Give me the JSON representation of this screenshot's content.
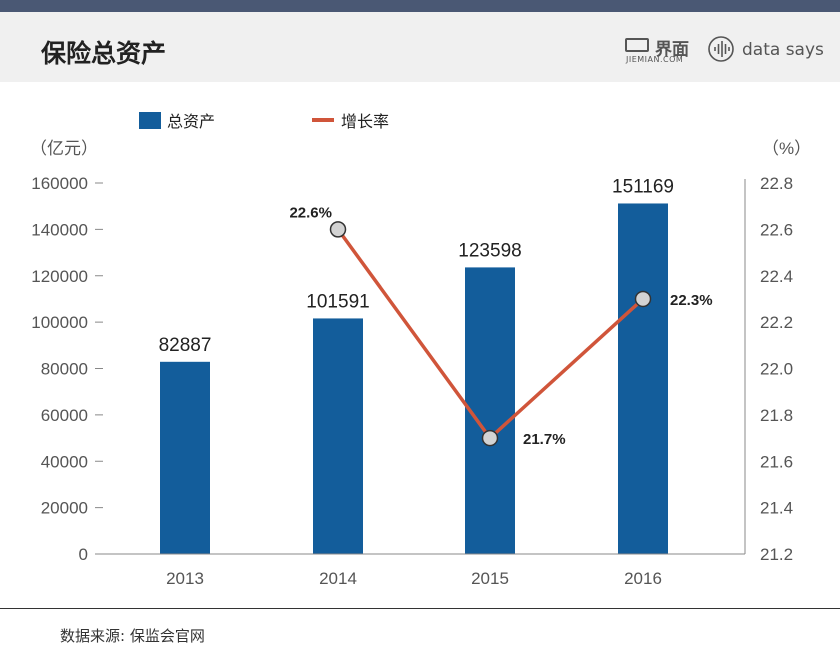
{
  "page": {
    "title": "保险总资产",
    "source": "数据来源: 保监会官网",
    "brand_jiemian": "界面",
    "brand_jiemian_sub": "JIEMIAN.COM",
    "brand_datasays": "data says"
  },
  "colors": {
    "topbar": "#4a5874",
    "header_bg": "#f0f0f0",
    "bar": "#135d9b",
    "line": "#d0553a",
    "marker_fill": "#d3d3d3"
  },
  "chart_data": {
    "type": "bar",
    "categories": [
      "2013",
      "2014",
      "2015",
      "2016"
    ],
    "series": [
      {
        "name": "总资产",
        "type": "bar",
        "axis": "left",
        "values": [
          82887,
          101591,
          123598,
          151169
        ],
        "labels": [
          "82887",
          "101591",
          "123598",
          "151169"
        ]
      },
      {
        "name": "增长率",
        "type": "line",
        "axis": "right",
        "values": [
          null,
          22.6,
          21.7,
          22.3
        ],
        "labels": [
          "",
          "22.6%",
          "21.7%",
          "22.3%"
        ]
      }
    ],
    "y_left": {
      "unit": "（亿元）",
      "min": 0,
      "max": 160000,
      "ticks": [
        "0",
        "20000",
        "40000",
        "60000",
        "80000",
        "100000",
        "120000",
        "140000",
        "160000"
      ]
    },
    "y_right": {
      "unit": "（%）",
      "min": 21.2,
      "max": 22.8,
      "ticks": [
        "21.2",
        "21.4",
        "21.6",
        "21.8",
        "22.0",
        "22.2",
        "22.4",
        "22.6",
        "22.8"
      ]
    },
    "legend_position": "top-left",
    "grid": false
  }
}
